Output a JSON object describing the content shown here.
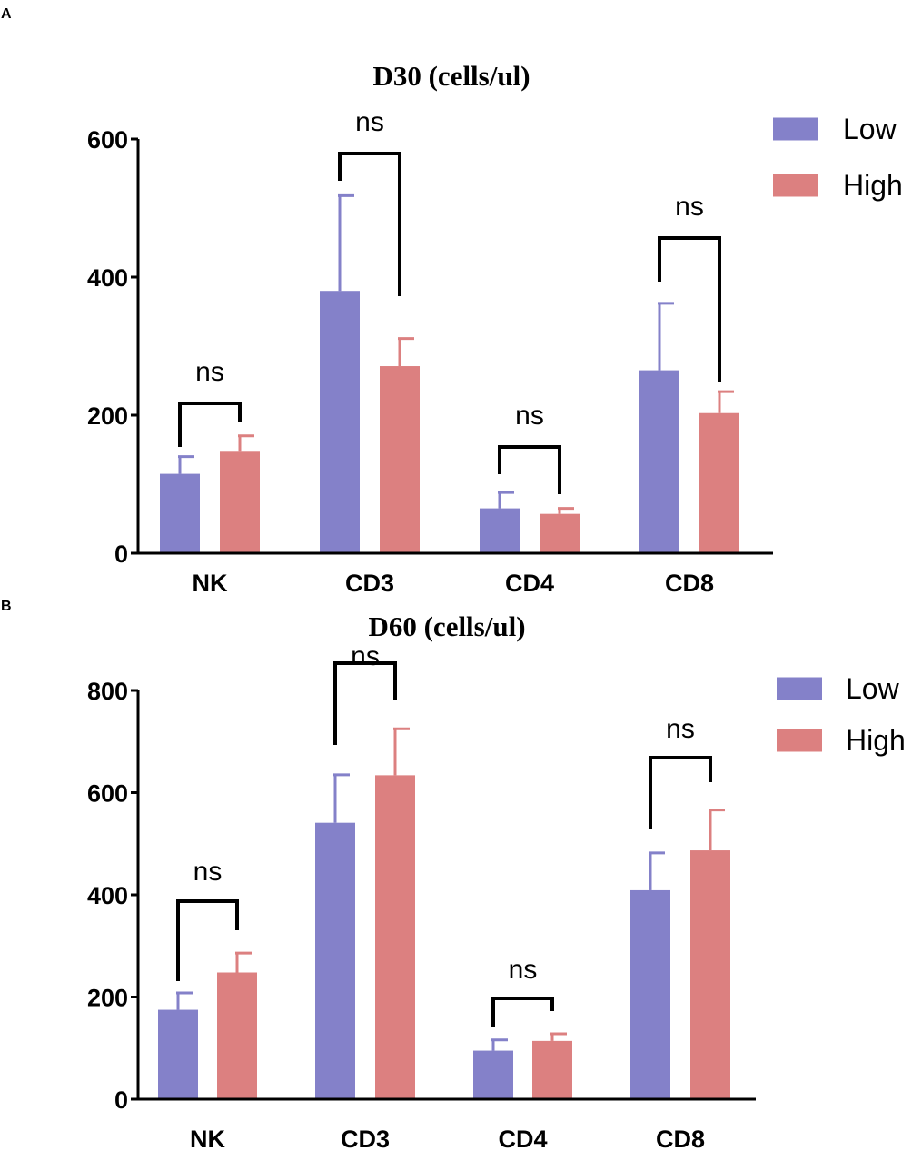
{
  "colors": {
    "low": "#8481c9",
    "high": "#dc8080",
    "axis": "#000000"
  },
  "chart_data": [
    {
      "type": "bar",
      "panel": "A",
      "title": "D30  (cells/ul)",
      "categories": [
        "NK",
        "CD3",
        "CD4",
        "CD8"
      ],
      "series": [
        {
          "name": "Low",
          "values": [
            115,
            380,
            65,
            265
          ],
          "errors": [
            25,
            138,
            23,
            97
          ]
        },
        {
          "name": "High",
          "values": [
            147,
            271,
            57,
            203
          ],
          "errors": [
            23,
            40,
            8,
            31
          ]
        }
      ],
      "significance": [
        "ns",
        "ns",
        "ns",
        "ns"
      ],
      "ylim": [
        0,
        600
      ],
      "yticks": [
        0,
        200,
        400,
        600
      ],
      "ylabel": "",
      "xlabel": "",
      "legend": "right"
    },
    {
      "type": "bar",
      "panel": "B",
      "title": "D60  (cells/ul)",
      "categories": [
        "NK",
        "CD3",
        "CD4",
        "CD8"
      ],
      "series": [
        {
          "name": "Low",
          "values": [
            175,
            541,
            95,
            409
          ],
          "errors": [
            33,
            94,
            21,
            73
          ]
        },
        {
          "name": "High",
          "values": [
            248,
            634,
            114,
            487
          ],
          "errors": [
            38,
            91,
            14,
            79
          ]
        }
      ],
      "significance": [
        "ns",
        "ns",
        "ns",
        "ns"
      ],
      "ylim": [
        0,
        800
      ],
      "yticks": [
        0,
        200,
        400,
        600,
        800
      ],
      "ylabel": "",
      "xlabel": "",
      "legend": "right"
    }
  ]
}
